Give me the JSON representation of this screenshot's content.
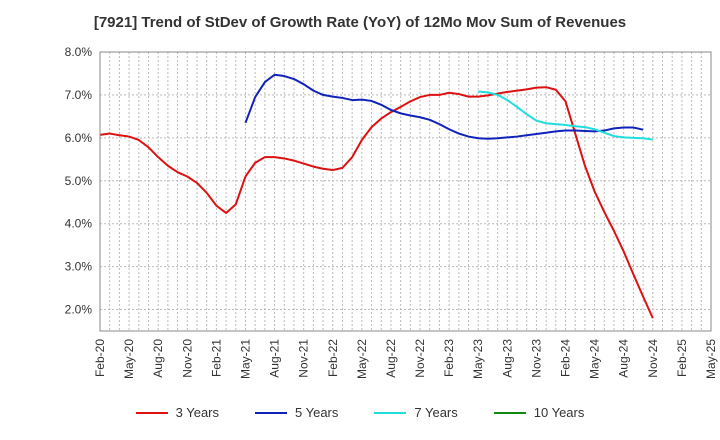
{
  "chart_data": {
    "type": "line",
    "title": "[7921]  Trend of StDev of Growth Rate (YoY) of 12Mo Mov Sum of Revenues",
    "xlabel": "",
    "ylabel": "",
    "ylim": [
      1.5,
      8.0
    ],
    "yticks": [
      "8.0%",
      "7.0%",
      "6.0%",
      "5.0%",
      "4.0%",
      "3.0%",
      "2.0%"
    ],
    "ytick_values": [
      8.0,
      7.0,
      6.0,
      5.0,
      4.0,
      3.0,
      2.0
    ],
    "x_tick_labels": [
      "Feb-20",
      "May-20",
      "Aug-20",
      "Nov-20",
      "Feb-21",
      "May-21",
      "Aug-21",
      "Nov-21",
      "Feb-22",
      "May-22",
      "Aug-22",
      "Nov-22",
      "Feb-23",
      "May-23",
      "Aug-23",
      "Nov-23",
      "Feb-24",
      "May-24",
      "Aug-24",
      "Nov-24",
      "Feb-25",
      "May-25"
    ],
    "x_start": "Feb-20",
    "months": 64,
    "series": [
      {
        "name": "3 Years",
        "color": "#dd1111",
        "start_index": 0,
        "values": [
          6.07,
          6.1,
          6.06,
          6.03,
          5.95,
          5.78,
          5.55,
          5.35,
          5.2,
          5.1,
          4.95,
          4.72,
          4.42,
          4.25,
          4.45,
          5.1,
          5.42,
          5.55,
          5.55,
          5.52,
          5.47,
          5.4,
          5.33,
          5.28,
          5.25,
          5.3,
          5.55,
          5.95,
          6.25,
          6.45,
          6.6,
          6.72,
          6.85,
          6.95,
          7.0,
          7.0,
          7.05,
          7.02,
          6.96,
          6.96,
          6.99,
          7.03,
          7.07,
          7.1,
          7.13,
          7.17,
          7.18,
          7.12,
          6.85,
          6.1,
          5.35,
          4.75,
          4.27,
          3.83,
          3.35,
          2.82,
          2.3,
          1.8
        ]
      },
      {
        "name": "5 Years",
        "color": "#1122bb",
        "start_index": 15,
        "values": [
          6.35,
          6.95,
          7.3,
          7.47,
          7.44,
          7.37,
          7.25,
          7.1,
          7.0,
          6.96,
          6.93,
          6.88,
          6.89,
          6.86,
          6.77,
          6.65,
          6.57,
          6.52,
          6.48,
          6.42,
          6.32,
          6.2,
          6.1,
          6.03,
          5.99,
          5.98,
          5.99,
          6.01,
          6.03,
          6.06,
          6.09,
          6.12,
          6.15,
          6.17,
          6.17,
          6.16,
          6.15,
          6.17,
          6.22,
          6.24,
          6.24,
          6.19
        ]
      },
      {
        "name": "7 Years",
        "color": "#22dddd",
        "start_index": 39,
        "values": [
          7.08,
          7.06,
          7.0,
          6.88,
          6.72,
          6.55,
          6.4,
          6.34,
          6.32,
          6.3,
          6.27,
          6.25,
          6.2,
          6.12,
          6.04,
          6.01,
          6.0,
          5.99,
          5.96
        ]
      },
      {
        "name": "10 Years",
        "color": "#118811",
        "start_index": 0,
        "values": []
      }
    ]
  }
}
